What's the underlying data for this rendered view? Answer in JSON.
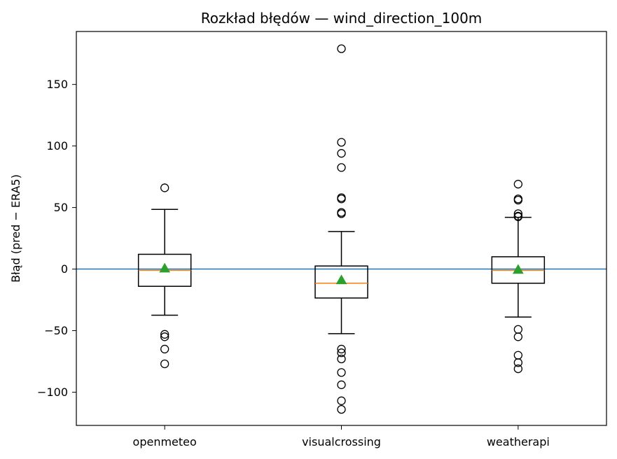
{
  "chart_data": {
    "type": "box",
    "title": "Rozkład błędów — wind_direction_100m",
    "xlabel": "",
    "ylabel": "Błąd (pred − ERA5)",
    "ylim": [
      -127,
      193
    ],
    "yticks": [
      -100,
      -50,
      0,
      50,
      100,
      150
    ],
    "ytick_labels": [
      "−100",
      "−50",
      "0",
      "50",
      "100",
      "150"
    ],
    "grid": false,
    "legend": "none",
    "reference_line": {
      "y": 0,
      "color": "#1f77b4"
    },
    "colors": {
      "box": "#000000",
      "median": "#ff7f0e",
      "mean": "#2ca02c"
    },
    "categories": [
      "openmeteo",
      "visualcrossing",
      "weatherapi"
    ],
    "boxes": [
      {
        "name": "openmeteo",
        "whisker_low": -37.5,
        "q1": -14,
        "median": -1,
        "q3": 12,
        "whisker_high": 48.5,
        "mean": 0.5,
        "outliers": [
          66,
          -53,
          -55,
          -65,
          -77
        ]
      },
      {
        "name": "visualcrossing",
        "whisker_low": -52.5,
        "q1": -23.5,
        "median": -11.5,
        "q3": 2.5,
        "whisker_high": 30.5,
        "mean": -9,
        "outliers": [
          179,
          103,
          94,
          82.5,
          58,
          57,
          46,
          45,
          -65,
          -68,
          -73,
          -84,
          -94,
          -107,
          -114
        ]
      },
      {
        "name": "weatherapi",
        "whisker_low": -39,
        "q1": -11.5,
        "median": -1,
        "q3": 10,
        "whisker_high": 42,
        "mean": -0.5,
        "outliers": [
          69,
          57,
          56,
          45,
          43,
          42.5,
          -49,
          -55,
          -70,
          -76,
          -81
        ]
      }
    ]
  }
}
